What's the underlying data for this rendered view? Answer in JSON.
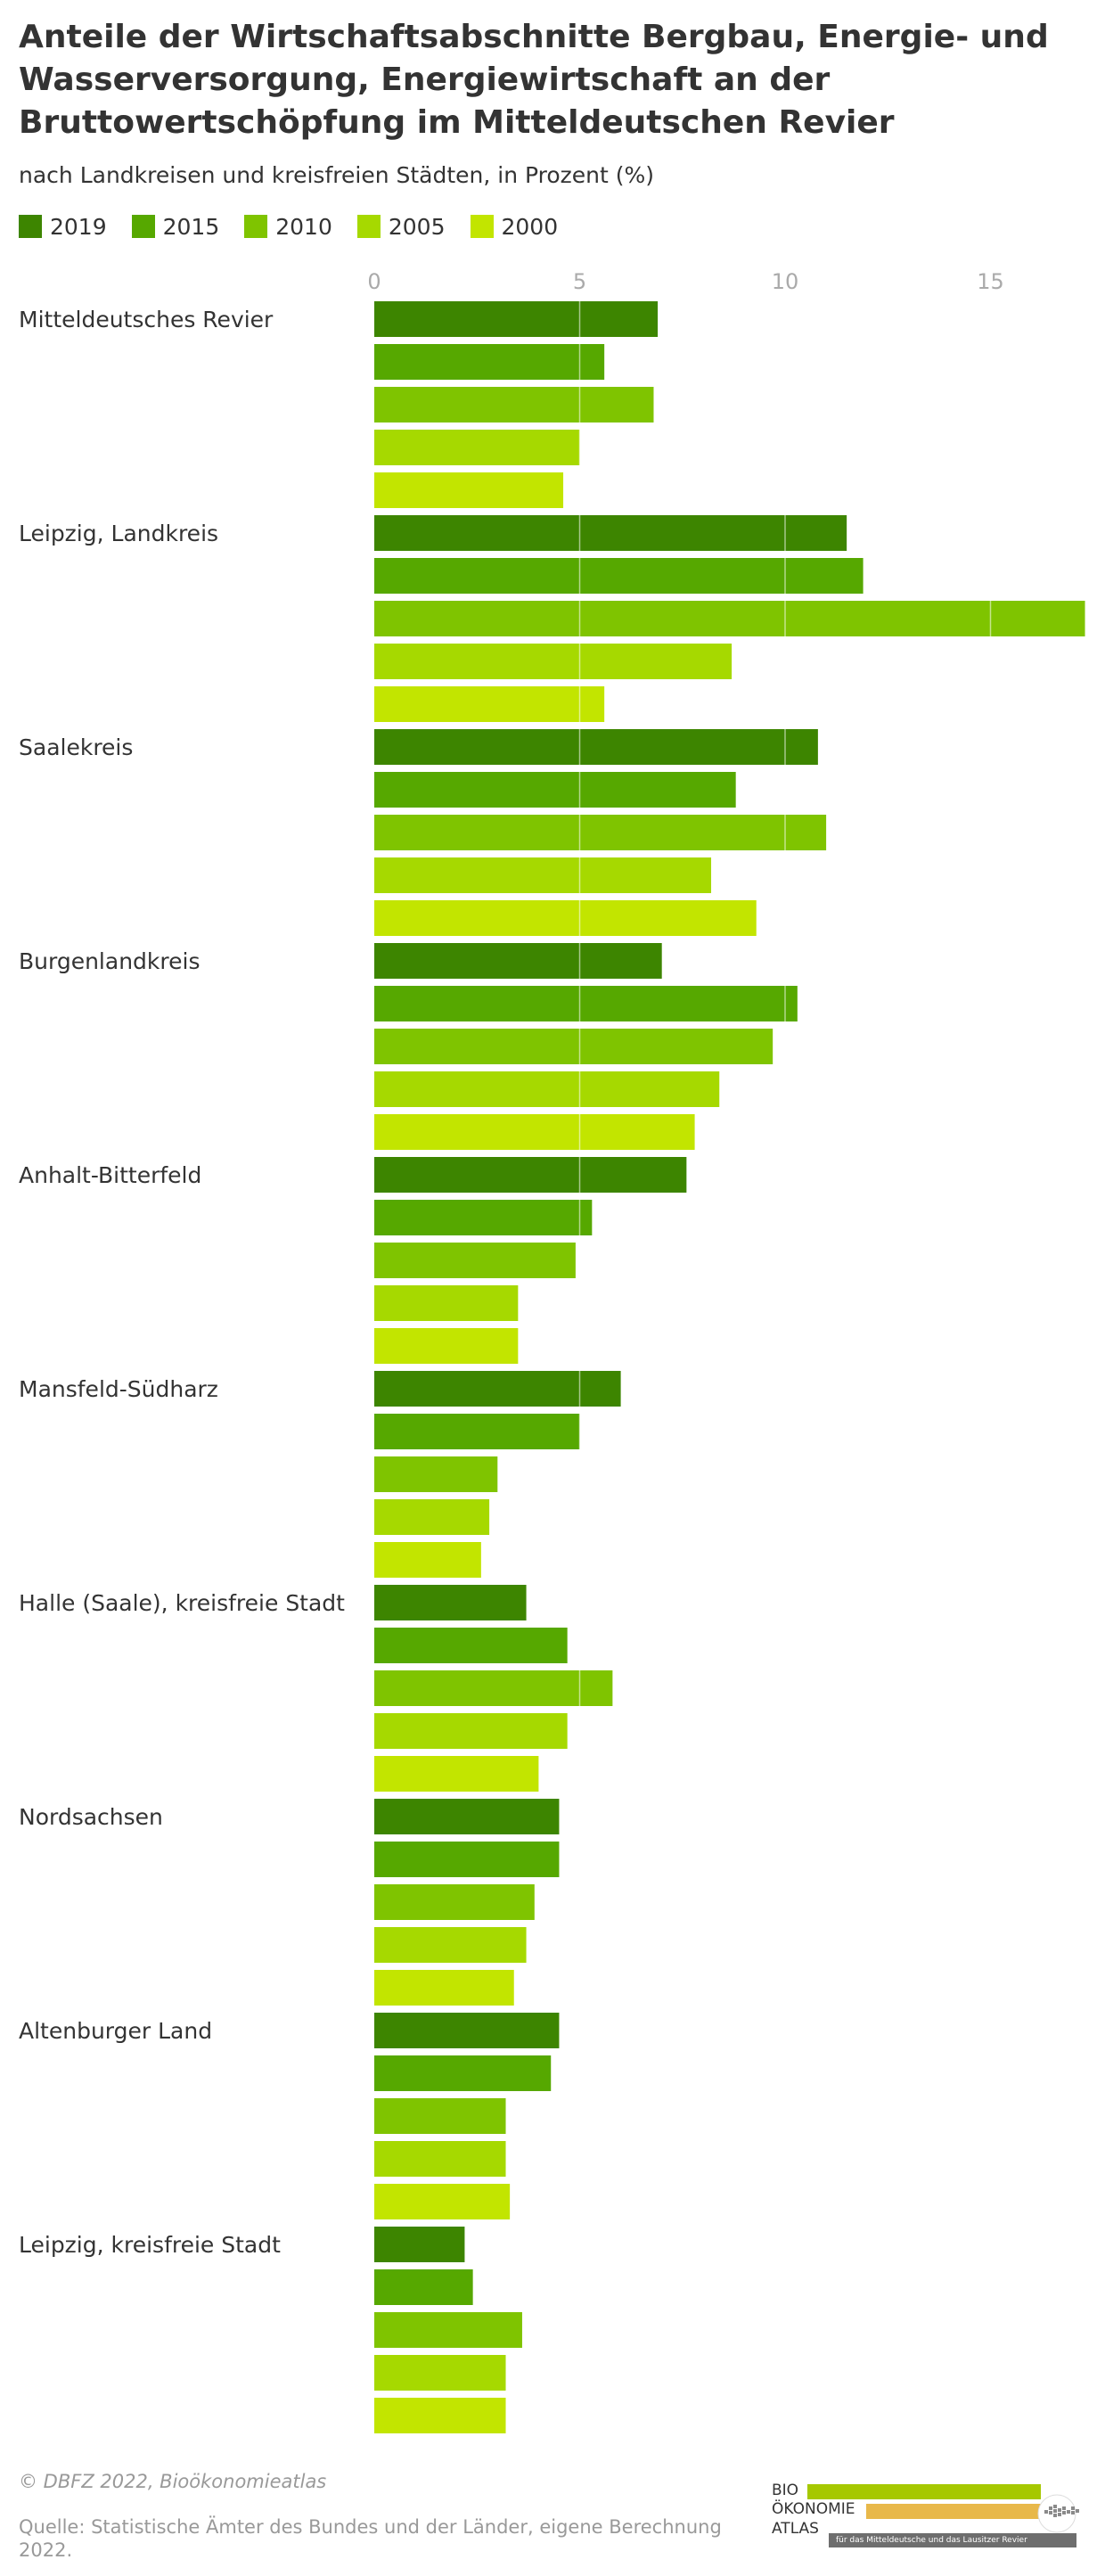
{
  "title": "Anteile der Wirtschaftsabschnitte Bergbau, Energie- und Wasserversorgung, Energiewirtschaft an der Bruttowertschöpfung im Mitteldeutschen Revier",
  "subtitle": "nach Landkreisen und kreisfreien Städten, in Prozent (%)",
  "legend": [
    {
      "label": "2019",
      "color": "#3d8500"
    },
    {
      "label": "2015",
      "color": "#56a800"
    },
    {
      "label": "2010",
      "color": "#7fc400"
    },
    {
      "label": "2005",
      "color": "#a6d900"
    },
    {
      "label": "2000",
      "color": "#c2e500"
    }
  ],
  "chart_data": {
    "type": "bar",
    "orientation": "horizontal",
    "categories": [
      "Mitteldeutsches Revier",
      "Leipzig, Landkreis",
      "Saalekreis",
      "Burgenlandkreis",
      "Anhalt-Bitterfeld",
      "Mansfeld-Südharz",
      "Halle (Saale), kreisfreie Stadt",
      "Nordsachsen",
      "Altenburger Land",
      "Leipzig, kreisfreie Stadt"
    ],
    "series": [
      {
        "name": "2019",
        "values": [
          6.9,
          11.5,
          10.8,
          7.0,
          7.6,
          6.0,
          3.7,
          4.5,
          4.5,
          2.2
        ]
      },
      {
        "name": "2015",
        "values": [
          5.6,
          11.9,
          8.8,
          10.3,
          5.3,
          5.0,
          4.7,
          4.5,
          4.3,
          2.4
        ]
      },
      {
        "name": "2010",
        "values": [
          6.8,
          17.3,
          11.0,
          9.7,
          4.9,
          3.0,
          5.8,
          3.9,
          3.2,
          3.6
        ]
      },
      {
        "name": "2005",
        "values": [
          5.0,
          8.7,
          8.2,
          8.4,
          3.5,
          2.8,
          4.7,
          3.7,
          3.2,
          3.2
        ]
      },
      {
        "name": "2000",
        "values": [
          4.6,
          5.6,
          9.3,
          7.8,
          3.5,
          2.6,
          4.0,
          3.4,
          3.3,
          3.2
        ]
      }
    ],
    "xticks": [
      "0",
      "5",
      "10",
      "15"
    ],
    "xlim": [
      0,
      17.3
    ],
    "grid": true,
    "legend_position": "top-left"
  },
  "footer": {
    "copyright": "© DBFZ 2022, Bioökonomieatlas",
    "source": "Quelle: Statistische Ämter des Bundes und der Länder, eigene Berechnung 2022."
  },
  "logo": {
    "line1": "BIO",
    "line2": "ÖKONOMIE",
    "line3": "ATLAS",
    "tagline": "für das Mitteldeutsche und das Lausitzer Revier",
    "bar_green": "#a6c800",
    "bar_yellow": "#e8b84a",
    "tag_gray": "#6e6e6e"
  }
}
